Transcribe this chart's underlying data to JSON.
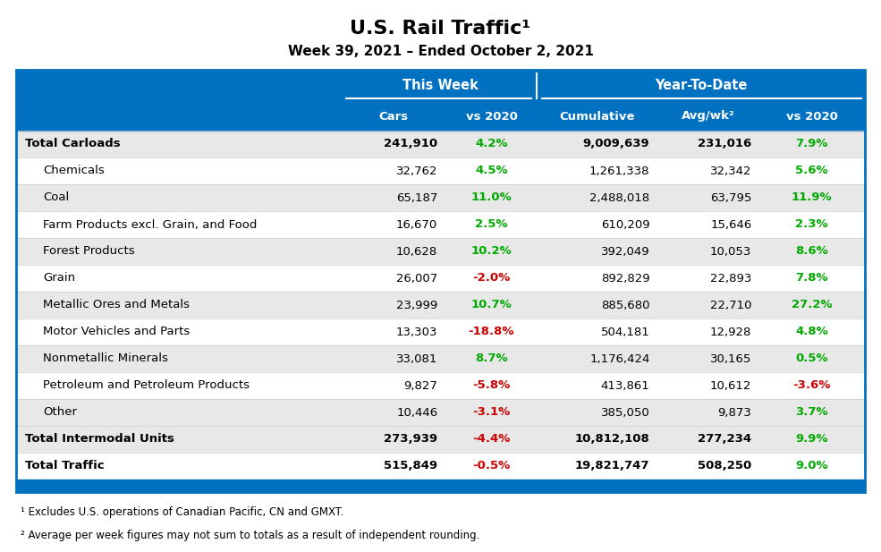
{
  "title": "U.S. Rail Traffic¹",
  "subtitle": "Week 39, 2021 – Ended October 2, 2021",
  "header_group1": "This Week",
  "header_group2": "Year-To-Date",
  "rows": [
    {
      "label": "Total Carloads",
      "bold": true,
      "cars": "241,910",
      "vs2020_w": "4.2%",
      "vs2020_w_color": "green",
      "cumulative": "9,009,639",
      "avgwk": "231,016",
      "vs2020_y": "7.9%",
      "vs2020_y_color": "green",
      "bg": "#e8e8e8"
    },
    {
      "label": "Chemicals",
      "bold": false,
      "cars": "32,762",
      "vs2020_w": "4.5%",
      "vs2020_w_color": "green",
      "cumulative": "1,261,338",
      "avgwk": "32,342",
      "vs2020_y": "5.6%",
      "vs2020_y_color": "green",
      "bg": "#ffffff"
    },
    {
      "label": "Coal",
      "bold": false,
      "cars": "65,187",
      "vs2020_w": "11.0%",
      "vs2020_w_color": "green",
      "cumulative": "2,488,018",
      "avgwk": "63,795",
      "vs2020_y": "11.9%",
      "vs2020_y_color": "green",
      "bg": "#e8e8e8"
    },
    {
      "label": "Farm Products excl. Grain, and Food",
      "bold": false,
      "cars": "16,670",
      "vs2020_w": "2.5%",
      "vs2020_w_color": "green",
      "cumulative": "610,209",
      "avgwk": "15,646",
      "vs2020_y": "2.3%",
      "vs2020_y_color": "green",
      "bg": "#ffffff"
    },
    {
      "label": "Forest Products",
      "bold": false,
      "cars": "10,628",
      "vs2020_w": "10.2%",
      "vs2020_w_color": "green",
      "cumulative": "392,049",
      "avgwk": "10,053",
      "vs2020_y": "8.6%",
      "vs2020_y_color": "green",
      "bg": "#e8e8e8"
    },
    {
      "label": "Grain",
      "bold": false,
      "cars": "26,007",
      "vs2020_w": "-2.0%",
      "vs2020_w_color": "red",
      "cumulative": "892,829",
      "avgwk": "22,893",
      "vs2020_y": "7.8%",
      "vs2020_y_color": "green",
      "bg": "#ffffff"
    },
    {
      "label": "Metallic Ores and Metals",
      "bold": false,
      "cars": "23,999",
      "vs2020_w": "10.7%",
      "vs2020_w_color": "green",
      "cumulative": "885,680",
      "avgwk": "22,710",
      "vs2020_y": "27.2%",
      "vs2020_y_color": "green",
      "bg": "#e8e8e8"
    },
    {
      "label": "Motor Vehicles and Parts",
      "bold": false,
      "cars": "13,303",
      "vs2020_w": "-18.8%",
      "vs2020_w_color": "red",
      "cumulative": "504,181",
      "avgwk": "12,928",
      "vs2020_y": "4.8%",
      "vs2020_y_color": "green",
      "bg": "#ffffff"
    },
    {
      "label": "Nonmetallic Minerals",
      "bold": false,
      "cars": "33,081",
      "vs2020_w": "8.7%",
      "vs2020_w_color": "green",
      "cumulative": "1,176,424",
      "avgwk": "30,165",
      "vs2020_y": "0.5%",
      "vs2020_y_color": "green",
      "bg": "#e8e8e8"
    },
    {
      "label": "Petroleum and Petroleum Products",
      "bold": false,
      "cars": "9,827",
      "vs2020_w": "-5.8%",
      "vs2020_w_color": "red",
      "cumulative": "413,861",
      "avgwk": "10,612",
      "vs2020_y": "-3.6%",
      "vs2020_y_color": "red",
      "bg": "#ffffff"
    },
    {
      "label": "Other",
      "bold": false,
      "cars": "10,446",
      "vs2020_w": "-3.1%",
      "vs2020_w_color": "red",
      "cumulative": "385,050",
      "avgwk": "9,873",
      "vs2020_y": "3.7%",
      "vs2020_y_color": "green",
      "bg": "#e8e8e8"
    },
    {
      "label": "Total Intermodal Units",
      "bold": true,
      "cars": "273,939",
      "vs2020_w": "-4.4%",
      "vs2020_w_color": "red",
      "cumulative": "10,812,108",
      "avgwk": "277,234",
      "vs2020_y": "9.9%",
      "vs2020_y_color": "green",
      "bg": "#e8e8e8"
    },
    {
      "label": "Total Traffic",
      "bold": true,
      "cars": "515,849",
      "vs2020_w": "-0.5%",
      "vs2020_w_color": "red",
      "cumulative": "19,821,747",
      "avgwk": "508,250",
      "vs2020_y": "9.0%",
      "vs2020_y_color": "green",
      "bg": "#ffffff"
    }
  ],
  "footnote1": "¹ Excludes U.S. operations of Canadian Pacific, CN and GMXT.",
  "footnote2": "² Average per week figures may not sum to totals as a result of independent rounding.",
  "header_blue": "#0070C0",
  "text_white": "#ffffff",
  "text_black": "#000000",
  "green_color": "#00AA00",
  "red_color": "#CC0000",
  "fig_width": 9.85,
  "fig_height": 6.17,
  "dpi": 100
}
